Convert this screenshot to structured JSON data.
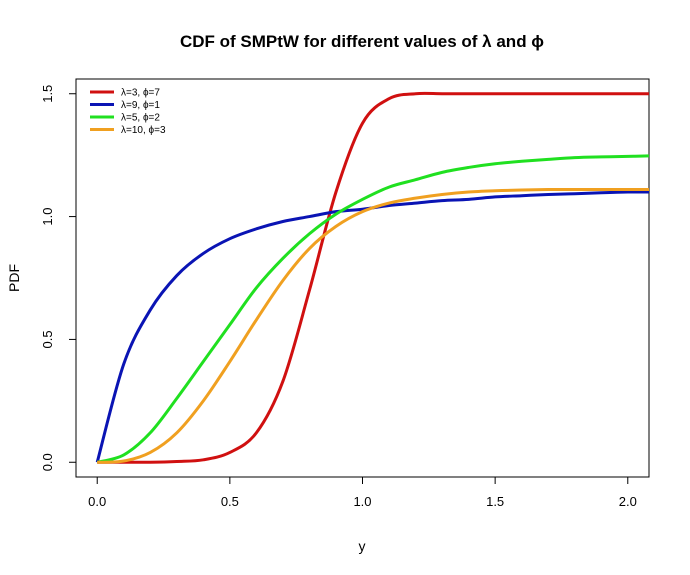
{
  "chart_data": {
    "type": "line",
    "title": "CDF of SMPtW for different values of λ and ϕ",
    "xlabel": "y",
    "ylabel": "PDF",
    "xlim": [
      -0.08,
      2.08
    ],
    "ylim": [
      -0.06,
      1.56
    ],
    "x_ticks": [
      0.0,
      0.5,
      1.0,
      1.5,
      2.0
    ],
    "x_tick_labels": [
      "0.0",
      "0.5",
      "1.0",
      "1.5",
      "2.0"
    ],
    "y_ticks": [
      0.0,
      0.5,
      1.0,
      1.5
    ],
    "y_tick_labels": [
      "0.0",
      "0.5",
      "1.0",
      "1.5"
    ],
    "legend_position": "top-left",
    "x": [
      0.0,
      0.1,
      0.2,
      0.3,
      0.4,
      0.5,
      0.6,
      0.7,
      0.8,
      0.9,
      1.0,
      1.1,
      1.2,
      1.3,
      1.4,
      1.5,
      1.6,
      1.7,
      1.8,
      1.9,
      2.0,
      2.08
    ],
    "series": [
      {
        "name": "λ=3, ϕ=7",
        "color": "#d01010",
        "values": [
          0.0,
          0.0,
          0.0,
          0.003,
          0.01,
          0.04,
          0.12,
          0.33,
          0.7,
          1.1,
          1.38,
          1.48,
          1.5,
          1.5,
          1.5,
          1.5,
          1.5,
          1.5,
          1.5,
          1.5,
          1.5,
          1.5
        ]
      },
      {
        "name": "λ=9, ϕ=1",
        "color": "#0a14b4",
        "values": [
          0.0,
          0.4,
          0.62,
          0.76,
          0.85,
          0.91,
          0.95,
          0.98,
          1.0,
          1.02,
          1.03,
          1.045,
          1.055,
          1.065,
          1.07,
          1.08,
          1.085,
          1.09,
          1.093,
          1.097,
          1.1,
          1.1
        ]
      },
      {
        "name": "λ=5, ϕ=2",
        "color": "#20e020",
        "values": [
          0.0,
          0.03,
          0.12,
          0.26,
          0.41,
          0.56,
          0.71,
          0.83,
          0.93,
          1.01,
          1.07,
          1.12,
          1.15,
          1.18,
          1.2,
          1.215,
          1.225,
          1.233,
          1.24,
          1.243,
          1.245,
          1.247
        ]
      },
      {
        "name": "λ=10, ϕ=3",
        "color": "#f0a020",
        "values": [
          0.0,
          0.005,
          0.04,
          0.12,
          0.25,
          0.41,
          0.58,
          0.74,
          0.87,
          0.96,
          1.02,
          1.055,
          1.075,
          1.09,
          1.1,
          1.105,
          1.108,
          1.11,
          1.11,
          1.11,
          1.11,
          1.11
        ]
      }
    ]
  }
}
